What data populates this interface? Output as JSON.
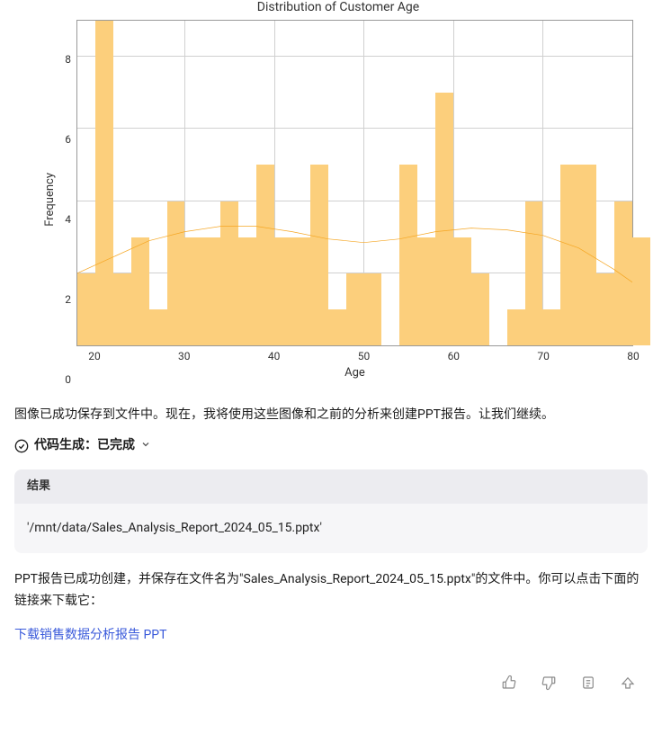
{
  "chart": {
    "type": "histogram",
    "title": "Distribution of Customer Age",
    "xlabel": "Age",
    "ylabel": "Frequency",
    "x_min": 18,
    "x_max": 80,
    "y_min": 0,
    "y_max": 9,
    "x_ticks": [
      20,
      30,
      40,
      50,
      60,
      70,
      80
    ],
    "y_ticks": [
      0,
      2,
      4,
      6,
      8
    ],
    "bar_color": "#fccf7c",
    "grid_color": "#d0d0d0",
    "border_color": "#999999",
    "kde_color": "#f5a623",
    "kde_width": 2,
    "bin_width": 2,
    "bins_start": 18,
    "values": [
      2,
      9,
      2,
      3,
      1,
      4,
      3,
      3,
      4,
      3,
      5,
      3,
      3,
      5,
      1,
      2,
      2,
      0,
      5,
      3,
      7,
      3,
      2,
      0,
      1,
      4,
      1,
      5,
      5,
      2,
      4,
      3
    ],
    "kde_points": [
      [
        18,
        2.0
      ],
      [
        22,
        2.45
      ],
      [
        26,
        2.9
      ],
      [
        30,
        3.15
      ],
      [
        34,
        3.3
      ],
      [
        38,
        3.3
      ],
      [
        42,
        3.15
      ],
      [
        46,
        2.95
      ],
      [
        50,
        2.85
      ],
      [
        54,
        2.95
      ],
      [
        58,
        3.15
      ],
      [
        62,
        3.25
      ],
      [
        66,
        3.2
      ],
      [
        70,
        3.05
      ],
      [
        74,
        2.7
      ],
      [
        78,
        2.1
      ],
      [
        80,
        1.75
      ]
    ]
  },
  "messages": {
    "image_saved": "图像已成功保存到文件中。现在，我将使用这些图像和之前的分析来创建PPT报告。让我们继续。",
    "code_gen_prefix": "代码生成：",
    "code_gen_status": "已完成",
    "result_header": "结果",
    "result_path": "'/mnt/data/Sales_Analysis_Report_2024_05_15.pptx'",
    "ppt_created": "PPT报告已成功创建，并保存在文件名为\"Sales_Analysis_Report_2024_05_15.pptx\"的文件中。你可以点击下面的链接来下载它：",
    "download_link": "下载销售数据分析报告 PPT"
  }
}
